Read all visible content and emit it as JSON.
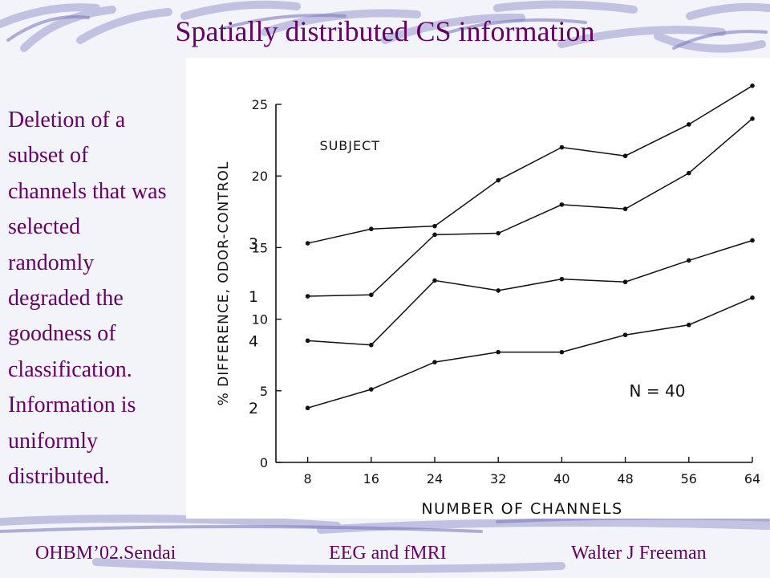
{
  "slide": {
    "title": "Spatially distributed CS information",
    "body_text": "Deletion of a subset of channels that was selected randomly degraded the goodness of classification. Information is uniformly distributed.",
    "footer": {
      "left": "OHBM’02.Sendai",
      "center": "EEG and fMRI",
      "right": "Walter J Freeman"
    },
    "colors": {
      "text": "#660066",
      "decoration": "#9a9ad0",
      "background": "#f3f3fa"
    }
  },
  "chart_data": {
    "type": "line",
    "title": "",
    "xlabel": "NUMBER OF CHANNELS",
    "ylabel": "% DIFFERENCE, ODOR-CONTROL",
    "x": [
      8,
      16,
      24,
      32,
      40,
      48,
      56,
      64
    ],
    "xlim": [
      4,
      64
    ],
    "ylim": [
      0,
      25
    ],
    "xticks": [
      "8",
      "16",
      "24",
      "32",
      "40",
      "48",
      "56",
      "64"
    ],
    "yticks": [
      "0",
      "5",
      "10",
      "15",
      "20",
      "25"
    ],
    "legend_title": "SUBJECT",
    "annotation": "N = 40",
    "grid": false,
    "series": [
      {
        "name": "3",
        "values": [
          15.3,
          16.3,
          16.5,
          19.7,
          22.0,
          21.4,
          23.6,
          26.3
        ]
      },
      {
        "name": "1",
        "values": [
          11.6,
          11.7,
          15.9,
          16.0,
          18.0,
          17.7,
          20.2,
          24.0
        ]
      },
      {
        "name": "4",
        "values": [
          8.5,
          8.2,
          12.7,
          12.0,
          12.8,
          12.6,
          14.1,
          15.5
        ]
      },
      {
        "name": "2",
        "values": [
          3.8,
          5.1,
          7.0,
          7.7,
          7.7,
          8.9,
          9.6,
          11.5
        ]
      }
    ]
  }
}
